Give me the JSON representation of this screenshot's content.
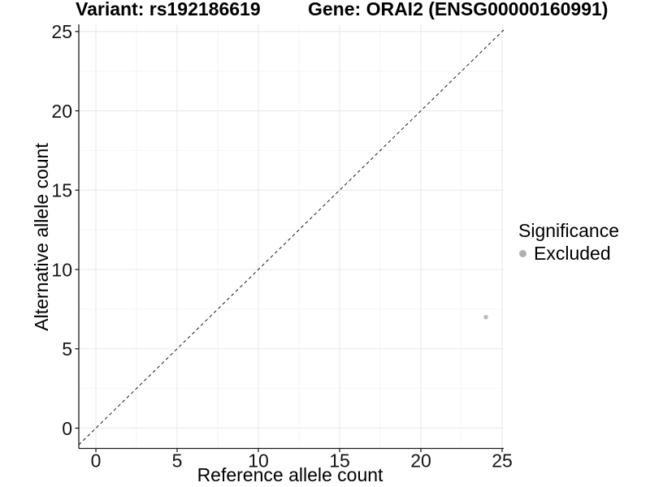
{
  "header": {
    "variant_title": "Variant: rs192186619",
    "gene_title": "Gene: ORAI2 (ENSG00000160991)"
  },
  "legend": {
    "title": "Significance",
    "items": [
      {
        "label": "Excluded",
        "color": "#b0b0b0"
      }
    ]
  },
  "colors": {
    "background": "#ffffff",
    "grid_major": "#e9e9e9",
    "grid_minor": "#f4f4f4",
    "axis_line": "#1c1c1c",
    "tick_label": "#141414",
    "reference_line": "#1a1a1a"
  },
  "chart_data": {
    "type": "scatter",
    "title": "Variant: rs192186619 | Gene: ORAI2 (ENSG00000160991)",
    "xlabel": "Reference allele count",
    "ylabel": "Alternative allele count",
    "xlim": [
      -1.05,
      25.1
    ],
    "ylim": [
      -1.28,
      25.45
    ],
    "x_ticks": [
      0,
      5,
      10,
      15,
      20,
      25
    ],
    "y_ticks": [
      0,
      5,
      10,
      15,
      20,
      25
    ],
    "minor_ticks": [
      2.5,
      7.5,
      12.5,
      17.5,
      22.5
    ],
    "grid": true,
    "legend_position": "right",
    "legend_title": "Significance",
    "reference_line": {
      "type": "abline",
      "slope": 1,
      "intercept": 0,
      "style": "dashed"
    },
    "series": [
      {
        "name": "Excluded",
        "color": "#bebebe",
        "point_radius": 2.8,
        "points": [
          {
            "x": 24,
            "y": 7
          }
        ]
      }
    ]
  }
}
